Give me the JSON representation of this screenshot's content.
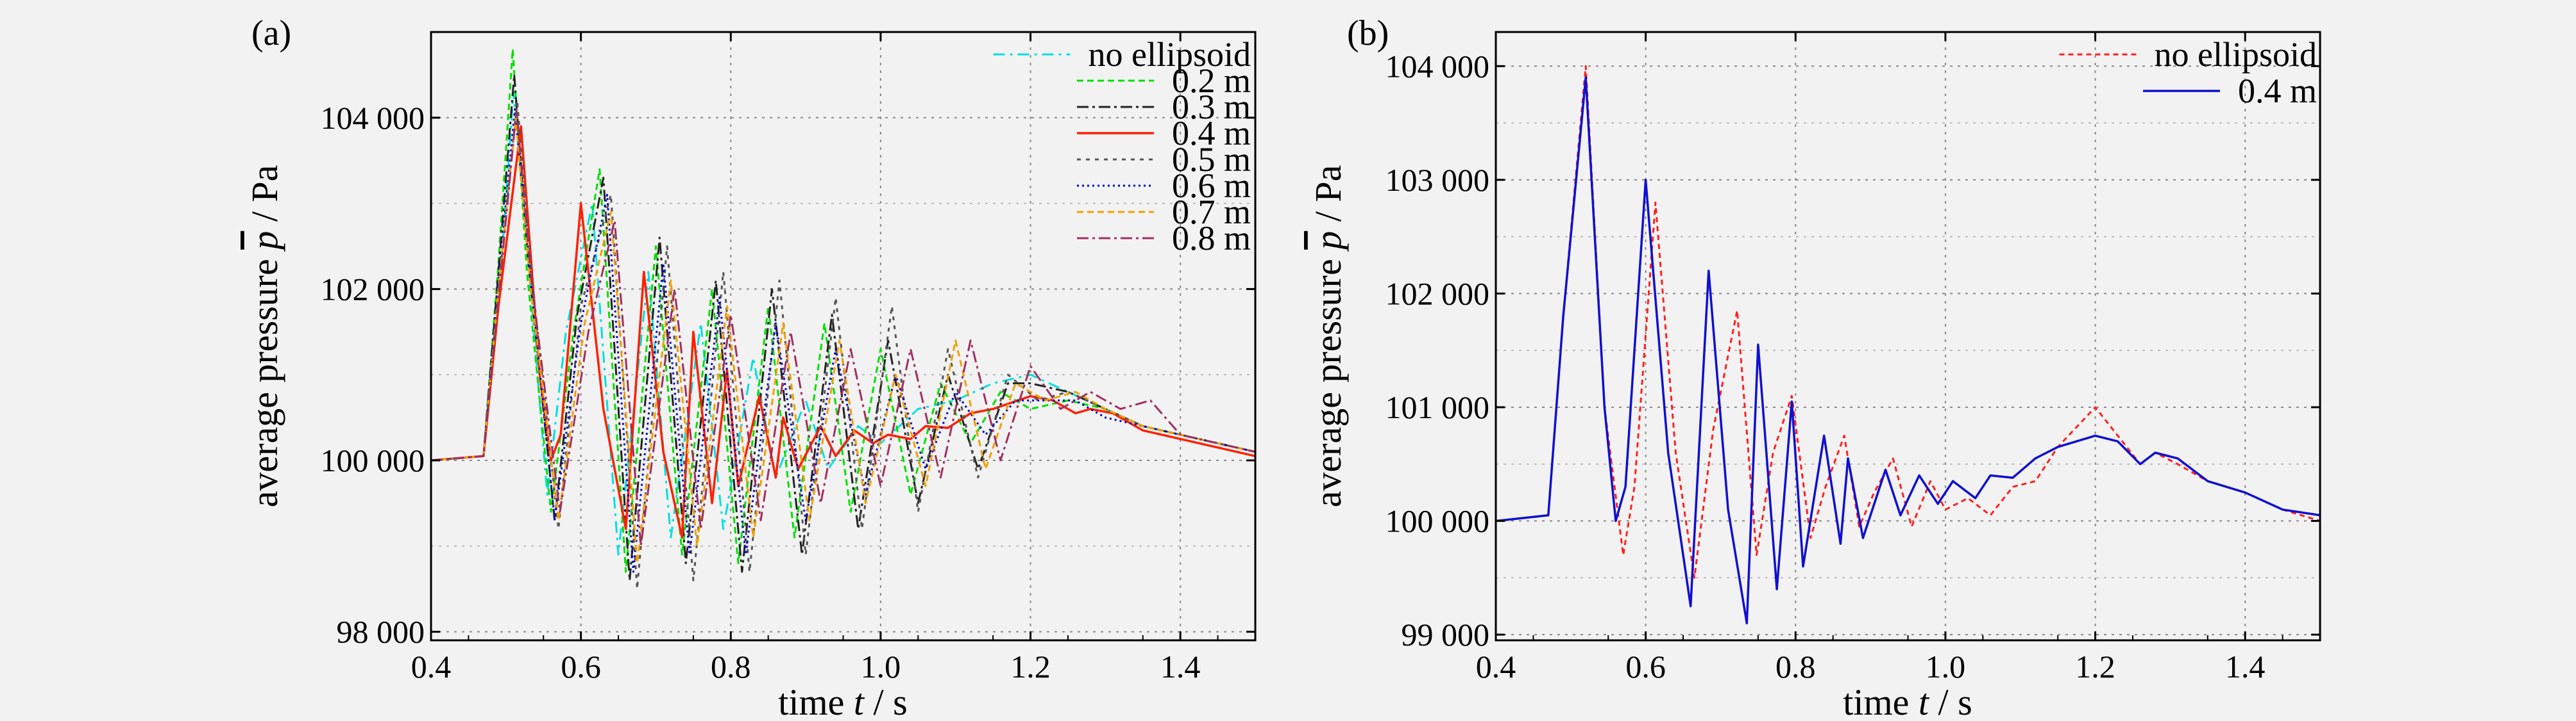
{
  "chart_data": [
    {
      "type": "line",
      "panel_label": "(a)",
      "xlabel_prefix": "time ",
      "xlabel_var": "t",
      "xlabel_suffix": " / s",
      "ylabel_prefix": "average pressure ",
      "ylabel_var": "p",
      "ylabel_suffix": " / Pa",
      "xlim": [
        0.4,
        1.5
      ],
      "ylim": [
        97900,
        105000
      ],
      "x_ticks": [
        0.4,
        0.6,
        0.8,
        1.0,
        1.2,
        1.4
      ],
      "x_tick_labels": [
        "0.4",
        "0.6",
        "0.8",
        "1.0",
        "1.2",
        "1.4"
      ],
      "y_ticks": [
        98000,
        100000,
        102000,
        104000
      ],
      "y_tick_labels": [
        "98 000",
        "100 000",
        "102 000",
        "104 000"
      ],
      "grid": true,
      "legend_position": "top-right",
      "series": [
        {
          "name": "no ellipsoid",
          "color": "#00e0e0",
          "dash": "18,8,4,8",
          "width": 3,
          "x": [
            0.4,
            0.47,
            0.49,
            0.51,
            0.53,
            0.555,
            0.58,
            0.615,
            0.65,
            0.69,
            0.72,
            0.76,
            0.79,
            0.83,
            0.86,
            0.9,
            0.93,
            0.97,
            1.0,
            1.05,
            1.1,
            1.15,
            1.2,
            1.25,
            1.3,
            1.35,
            1.4,
            1.45,
            1.5
          ],
          "y": [
            100000,
            100050,
            101800,
            104300,
            102300,
            99600,
            101500,
            103000,
            98900,
            102200,
            99100,
            101600,
            99200,
            101200,
            99800,
            100700,
            99900,
            100400,
            100200,
            100600,
            100700,
            100900,
            101000,
            100800,
            100600,
            100400,
            100300,
            100200,
            100100
          ]
        },
        {
          "name": "0.2 m",
          "color": "#00e000",
          "dash": "10,6",
          "width": 3,
          "x": [
            0.4,
            0.47,
            0.49,
            0.509,
            0.528,
            0.56,
            0.59,
            0.625,
            0.66,
            0.7,
            0.735,
            0.775,
            0.81,
            0.85,
            0.885,
            0.925,
            0.96,
            1.0,
            1.04,
            1.08,
            1.12,
            1.16,
            1.2,
            1.25,
            1.3,
            1.35,
            1.4,
            1.45,
            1.5
          ],
          "y": [
            100000,
            100050,
            102300,
            104800,
            102200,
            99400,
            101500,
            103400,
            98700,
            102500,
            98900,
            102000,
            98800,
            101800,
            99100,
            101600,
            99400,
            101300,
            99600,
            100900,
            100200,
            100800,
            100600,
            100700,
            100600,
            100400,
            100300,
            100200,
            100100
          ]
        },
        {
          "name": "0.3 m",
          "color": "#222222",
          "dash": "18,6,4,6",
          "width": 3,
          "x": [
            0.4,
            0.47,
            0.49,
            0.511,
            0.53,
            0.565,
            0.595,
            0.63,
            0.665,
            0.705,
            0.74,
            0.78,
            0.815,
            0.855,
            0.895,
            0.935,
            0.97,
            1.01,
            1.05,
            1.09,
            1.13,
            1.17,
            1.2,
            1.25,
            1.3,
            1.35,
            1.4,
            1.45,
            1.5
          ],
          "y": [
            100000,
            100050,
            102200,
            104500,
            102300,
            99300,
            101700,
            103300,
            98600,
            102600,
            98800,
            102100,
            98700,
            102000,
            98900,
            101700,
            99200,
            101400,
            99500,
            101000,
            99900,
            100900,
            100900,
            100800,
            100600,
            100400,
            100300,
            100200,
            100100
          ]
        },
        {
          "name": "0.4 m",
          "color": "#ff2000",
          "dash": "",
          "width": 3.5,
          "x": [
            0.4,
            0.47,
            0.49,
            0.52,
            0.545,
            0.56,
            0.573,
            0.6,
            0.63,
            0.66,
            0.684,
            0.71,
            0.735,
            0.75,
            0.775,
            0.795,
            0.81,
            0.838,
            0.86,
            0.87,
            0.89,
            0.92,
            0.94,
            0.965,
            0.99,
            1.01,
            1.04,
            1.06,
            1.09,
            1.12,
            1.15,
            1.2,
            1.23,
            1.26,
            1.28,
            1.31,
            1.35,
            1.4,
            1.45,
            1.5
          ],
          "y": [
            100000,
            100050,
            101800,
            103900,
            101000,
            100000,
            100300,
            103000,
            100600,
            99200,
            102200,
            100100,
            99100,
            101500,
            99500,
            101050,
            99700,
            100750,
            99800,
            100500,
            99900,
            100400,
            100050,
            100350,
            100200,
            100300,
            100250,
            100400,
            100380,
            100550,
            100600,
            100750,
            100700,
            100550,
            100600,
            100550,
            100350,
            100250,
            100150,
            100050
          ]
        },
        {
          "name": "0.5 m",
          "color": "#555555",
          "dash": "6,8",
          "width": 3,
          "x": [
            0.4,
            0.47,
            0.49,
            0.515,
            0.535,
            0.57,
            0.6,
            0.64,
            0.675,
            0.715,
            0.75,
            0.79,
            0.825,
            0.865,
            0.9,
            0.94,
            0.975,
            1.015,
            1.05,
            1.09,
            1.13,
            1.17,
            1.21,
            1.25,
            1.3,
            1.35,
            1.4,
            1.45,
            1.5
          ],
          "y": [
            100000,
            100050,
            102000,
            104200,
            102100,
            99200,
            101800,
            103100,
            98500,
            102500,
            98600,
            102200,
            98700,
            102100,
            98900,
            101900,
            99200,
            101800,
            99400,
            101300,
            99800,
            101000,
            100700,
            100800,
            100600,
            100400,
            100300,
            100200,
            100100
          ]
        },
        {
          "name": "0.6 m",
          "color": "#0000cc",
          "dash": "3,5",
          "width": 3,
          "x": [
            0.4,
            0.47,
            0.49,
            0.512,
            0.532,
            0.565,
            0.6,
            0.635,
            0.67,
            0.71,
            0.745,
            0.785,
            0.82,
            0.86,
            0.9,
            0.94,
            0.98,
            1.02,
            1.06,
            1.1,
            1.14,
            1.18,
            1.22,
            1.26,
            1.3,
            1.35,
            1.4,
            1.45,
            1.5
          ],
          "y": [
            100000,
            100050,
            102100,
            104100,
            102200,
            99300,
            101600,
            103100,
            98700,
            102300,
            98900,
            101900,
            98900,
            101600,
            99300,
            101300,
            99600,
            101000,
            99900,
            100800,
            100300,
            100700,
            100700,
            100700,
            100500,
            100400,
            100300,
            100200,
            100100
          ]
        },
        {
          "name": "0.7 m",
          "color": "#f0a000",
          "dash": "10,6",
          "width": 3,
          "x": [
            0.4,
            0.47,
            0.49,
            0.513,
            0.533,
            0.57,
            0.605,
            0.64,
            0.675,
            0.72,
            0.755,
            0.795,
            0.83,
            0.87,
            0.905,
            0.945,
            0.98,
            1.02,
            1.06,
            1.1,
            1.14,
            1.18,
            1.22,
            1.26,
            1.3,
            1.35,
            1.4,
            1.45,
            1.5
          ],
          "y": [
            100000,
            100050,
            102000,
            104000,
            102000,
            99300,
            101600,
            102900,
            98800,
            102100,
            99000,
            101800,
            99100,
            101600,
            99300,
            101400,
            99500,
            101000,
            99700,
            101400,
            99900,
            100900,
            100700,
            100800,
            100600,
            100400,
            100300,
            100200,
            100100
          ]
        },
        {
          "name": "0.8 m",
          "color": "#a03060",
          "dash": "18,6,4,6",
          "width": 3,
          "x": [
            0.4,
            0.47,
            0.49,
            0.514,
            0.534,
            0.572,
            0.61,
            0.645,
            0.68,
            0.725,
            0.76,
            0.8,
            0.84,
            0.88,
            0.92,
            0.96,
            1.0,
            1.04,
            1.08,
            1.12,
            1.16,
            1.2,
            1.24,
            1.28,
            1.32,
            1.36,
            1.4,
            1.45,
            1.5
          ],
          "y": [
            100000,
            100050,
            101900,
            104100,
            102100,
            99400,
            101500,
            102800,
            99000,
            102000,
            99200,
            101700,
            99300,
            101500,
            99500,
            101300,
            99700,
            101300,
            99800,
            101400,
            100000,
            101100,
            100600,
            100800,
            100600,
            100700,
            100300,
            100200,
            100100
          ]
        }
      ]
    },
    {
      "type": "line",
      "panel_label": "(b)",
      "xlabel_prefix": "time ",
      "xlabel_var": "t",
      "xlabel_suffix": " / s",
      "ylabel_prefix": "average pressure ",
      "ylabel_var": "p",
      "ylabel_suffix": " / Pa",
      "xlim": [
        0.4,
        1.5
      ],
      "ylim": [
        98950,
        104300
      ],
      "x_ticks": [
        0.4,
        0.6,
        0.8,
        1.0,
        1.2,
        1.4
      ],
      "x_tick_labels": [
        "0.4",
        "0.6",
        "0.8",
        "1.0",
        "1.2",
        "1.4"
      ],
      "y_ticks": [
        99000,
        100000,
        101000,
        102000,
        103000,
        104000
      ],
      "y_tick_labels": [
        "99 000",
        "100 000",
        "101 000",
        "102 000",
        "103 000",
        "104 000"
      ],
      "grid": true,
      "legend_position": "top-right",
      "series": [
        {
          "name": "no ellipsoid",
          "color": "#ff2020",
          "dash": "8,6",
          "width": 3,
          "x": [
            0.4,
            0.47,
            0.49,
            0.52,
            0.545,
            0.57,
            0.585,
            0.613,
            0.64,
            0.665,
            0.69,
            0.722,
            0.748,
            0.77,
            0.795,
            0.82,
            0.84,
            0.865,
            0.885,
            0.905,
            0.93,
            0.955,
            0.98,
            1.0,
            1.03,
            1.06,
            1.09,
            1.12,
            1.15,
            1.2,
            1.23,
            1.26,
            1.28,
            1.31,
            1.35,
            1.4,
            1.45,
            1.5
          ],
          "y": [
            100000,
            100050,
            101800,
            104000,
            101000,
            99700,
            100300,
            102800,
            100600,
            99500,
            100800,
            101850,
            99700,
            100600,
            101100,
            99850,
            100300,
            100750,
            99950,
            100250,
            100550,
            99950,
            100350,
            100100,
            100200,
            100050,
            100300,
            100350,
            100650,
            101000,
            100750,
            100500,
            100600,
            100500,
            100350,
            100250,
            100100,
            100000
          ]
        },
        {
          "name": "0.4 m",
          "color": "#1010d0",
          "dash": "",
          "width": 3.5,
          "x": [
            0.4,
            0.47,
            0.49,
            0.52,
            0.545,
            0.56,
            0.573,
            0.6,
            0.63,
            0.66,
            0.684,
            0.71,
            0.735,
            0.75,
            0.775,
            0.795,
            0.81,
            0.838,
            0.86,
            0.87,
            0.89,
            0.92,
            0.94,
            0.965,
            0.99,
            1.01,
            1.04,
            1.06,
            1.09,
            1.12,
            1.15,
            1.2,
            1.23,
            1.26,
            1.28,
            1.31,
            1.35,
            1.4,
            1.45,
            1.5
          ],
          "y": [
            100000,
            100050,
            101800,
            103900,
            101000,
            100000,
            100300,
            103000,
            100600,
            99250,
            102200,
            100100,
            99100,
            101550,
            99400,
            101050,
            99600,
            100750,
            99800,
            100550,
            99850,
            100450,
            100050,
            100400,
            100150,
            100350,
            100200,
            100400,
            100380,
            100550,
            100650,
            100750,
            100700,
            100500,
            100600,
            100550,
            100350,
            100250,
            100100,
            100050
          ]
        }
      ]
    }
  ]
}
